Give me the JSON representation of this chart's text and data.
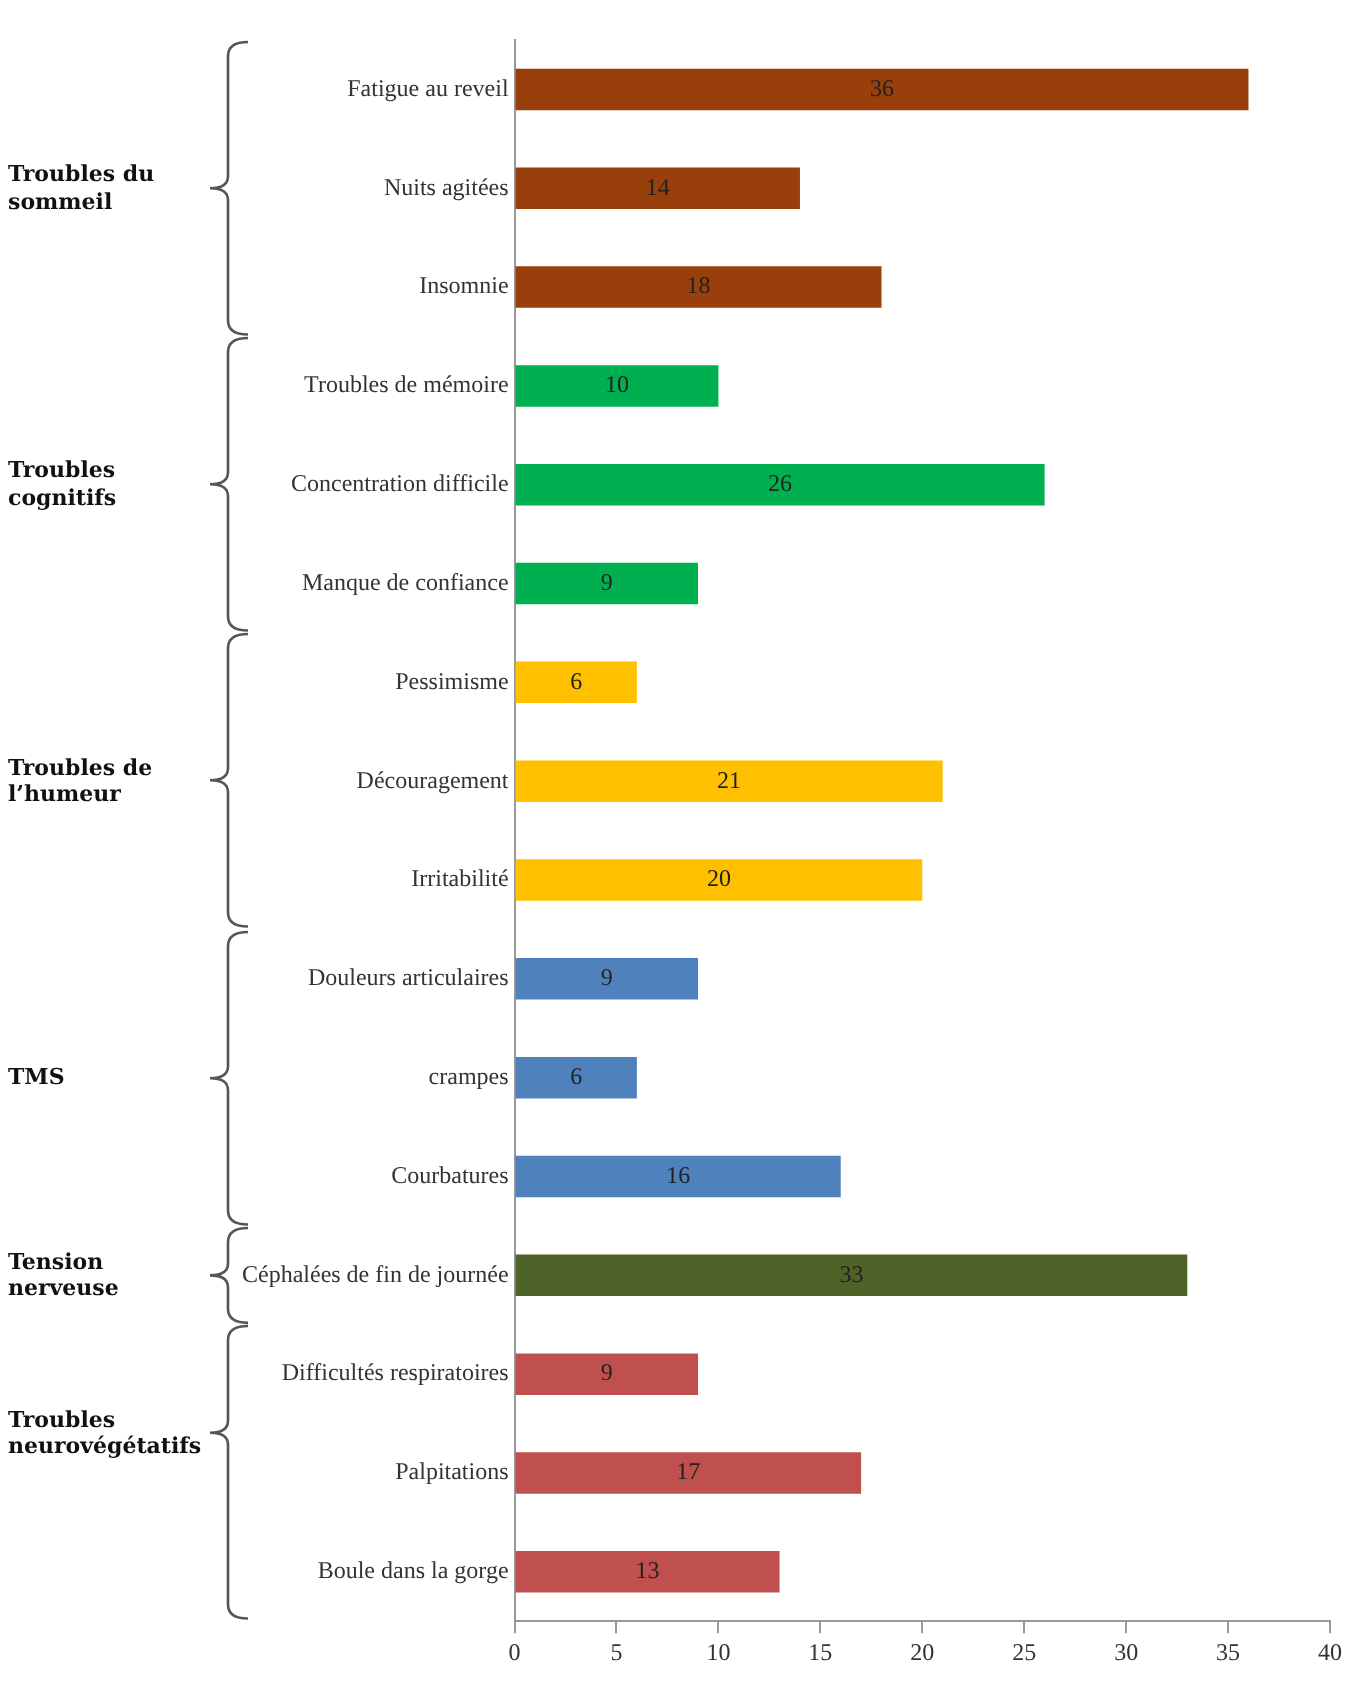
{
  "chart_data": {
    "type": "bar",
    "orientation": "horizontal",
    "categories": [
      "Fatigue au reveil",
      "Nuits agitées",
      "Insomnie",
      "Troubles de mémoire",
      "Concentration difficile",
      "Manque de confiance",
      "Pessimisme",
      "Découragement",
      "Irritabilité",
      "Douleurs articulaires",
      "crampes",
      "Courbatures",
      "Céphalées de fin de journée",
      "Difficultés respiratoires",
      "Palpitations",
      "Boule dans la gorge"
    ],
    "values": [
      36,
      14,
      18,
      10,
      26,
      9,
      6,
      21,
      20,
      9,
      6,
      16,
      33,
      9,
      17,
      13
    ],
    "colors": [
      "#983f0c",
      "#983f0c",
      "#983f0c",
      "#00b050",
      "#00b050",
      "#00b050",
      "#ffc000",
      "#ffc000",
      "#ffc000",
      "#4f81bd",
      "#4f81bd",
      "#4f81bd",
      "#4f6228",
      "#c0504d",
      "#c0504d",
      "#c0504d"
    ],
    "xlim": [
      0,
      40
    ],
    "xticks": [
      0,
      5,
      10,
      15,
      20,
      25,
      30,
      35,
      40
    ],
    "grid": false,
    "legend": false,
    "data_labels": true,
    "annotations": [
      "Troubles du sommeil",
      "Troubles cognitifs",
      "Troubles de l’humeur",
      "TMS",
      "Tension nerveuse",
      "Troubles neurovégétatifs"
    ]
  }
}
